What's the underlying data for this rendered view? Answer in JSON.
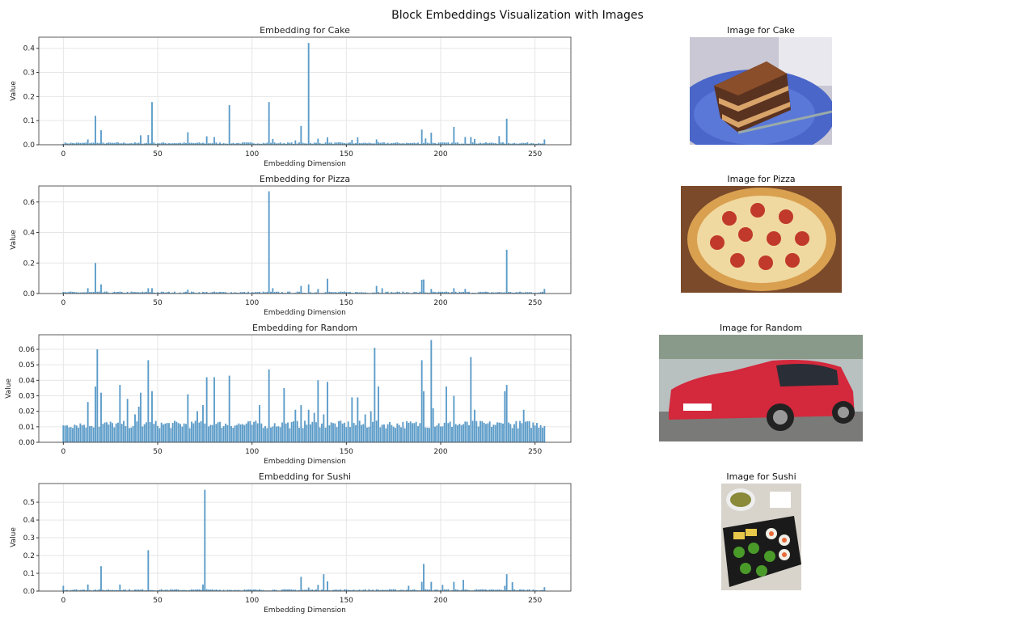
{
  "figure": {
    "title": "Block Embeddings Visualization with Images",
    "bar_color": "#5b9bc8"
  },
  "chart_data": [
    {
      "type": "bar",
      "title": "Embedding for Cake",
      "xlabel": "Embedding Dimension",
      "ylabel": "Value",
      "n": 256,
      "xlim": [
        -13,
        269
      ],
      "ylim": [
        0,
        0.446
      ],
      "xticks": [
        0,
        50,
        100,
        150,
        200,
        250
      ],
      "yticks": [
        0.0,
        0.1,
        0.2,
        0.3,
        0.4
      ],
      "ytick_labels": [
        "0.0",
        "0.1",
        "0.2",
        "0.3",
        "0.4"
      ],
      "grid": true,
      "baseline_level": 0.007,
      "baseline_noise": 0.006,
      "spikes": [
        [
          13,
          0.022
        ],
        [
          17,
          0.12
        ],
        [
          20,
          0.06
        ],
        [
          41,
          0.039
        ],
        [
          45,
          0.04
        ],
        [
          47,
          0.177
        ],
        [
          66,
          0.052
        ],
        [
          76,
          0.035
        ],
        [
          80,
          0.032
        ],
        [
          88,
          0.164
        ],
        [
          109,
          0.177
        ],
        [
          111,
          0.024
        ],
        [
          123,
          0.018
        ],
        [
          126,
          0.078
        ],
        [
          130,
          0.422
        ],
        [
          135,
          0.025
        ],
        [
          140,
          0.031
        ],
        [
          153,
          0.02
        ],
        [
          156,
          0.031
        ],
        [
          166,
          0.022
        ],
        [
          190,
          0.063
        ],
        [
          192,
          0.026
        ],
        [
          195,
          0.05
        ],
        [
          207,
          0.074
        ],
        [
          213,
          0.032
        ],
        [
          216,
          0.032
        ],
        [
          218,
          0.024
        ],
        [
          231,
          0.036
        ],
        [
          235,
          0.108
        ],
        [
          255,
          0.022
        ]
      ]
    },
    {
      "type": "bar",
      "title": "Embedding for Pizza",
      "xlabel": "Embedding Dimension",
      "ylabel": "Value",
      "n": 256,
      "xlim": [
        -13,
        269
      ],
      "ylim": [
        0,
        0.705
      ],
      "xticks": [
        0,
        50,
        100,
        150,
        200,
        250
      ],
      "yticks": [
        0.0,
        0.2,
        0.4,
        0.6
      ],
      "ytick_labels": [
        "0.0",
        "0.2",
        "0.4",
        "0.6"
      ],
      "grid": true,
      "baseline_level": 0.008,
      "baseline_noise": 0.01,
      "spikes": [
        [
          13,
          0.035
        ],
        [
          17,
          0.2
        ],
        [
          20,
          0.06
        ],
        [
          45,
          0.035
        ],
        [
          47,
          0.035
        ],
        [
          66,
          0.025
        ],
        [
          109,
          0.67
        ],
        [
          111,
          0.035
        ],
        [
          126,
          0.05
        ],
        [
          130,
          0.06
        ],
        [
          135,
          0.03
        ],
        [
          140,
          0.097
        ],
        [
          166,
          0.05
        ],
        [
          169,
          0.035
        ],
        [
          190,
          0.09
        ],
        [
          191,
          0.092
        ],
        [
          195,
          0.03
        ],
        [
          207,
          0.035
        ],
        [
          213,
          0.03
        ],
        [
          235,
          0.287
        ],
        [
          255,
          0.03
        ]
      ]
    },
    {
      "type": "bar",
      "title": "Embedding for Random",
      "xlabel": "Embedding Dimension",
      "ylabel": "Value",
      "n": 256,
      "xlim": [
        -13,
        269
      ],
      "ylim": [
        0,
        0.0694
      ],
      "xticks": [
        0,
        50,
        100,
        150,
        200,
        250
      ],
      "yticks": [
        0,
        0.01,
        0.02,
        0.03,
        0.04,
        0.05,
        0.06
      ],
      "ytick_labels": [
        "0.00",
        "0.01",
        "0.02",
        "0.03",
        "0.04",
        "0.05",
        "0.06"
      ],
      "grid": true,
      "baseline_level": 0.0115,
      "baseline_noise": 0.005,
      "spikes": [
        [
          13,
          0.026
        ],
        [
          17,
          0.036
        ],
        [
          18,
          0.06
        ],
        [
          20,
          0.032
        ],
        [
          30,
          0.037
        ],
        [
          34,
          0.028
        ],
        [
          38,
          0.018
        ],
        [
          40,
          0.023
        ],
        [
          41,
          0.032
        ],
        [
          45,
          0.053
        ],
        [
          47,
          0.033
        ],
        [
          66,
          0.031
        ],
        [
          71,
          0.02
        ],
        [
          74,
          0.024
        ],
        [
          76,
          0.042
        ],
        [
          80,
          0.042
        ],
        [
          88,
          0.043
        ],
        [
          104,
          0.024
        ],
        [
          109,
          0.047
        ],
        [
          117,
          0.035
        ],
        [
          123,
          0.021
        ],
        [
          126,
          0.024
        ],
        [
          130,
          0.021
        ],
        [
          133,
          0.019
        ],
        [
          135,
          0.04
        ],
        [
          138,
          0.018
        ],
        [
          140,
          0.039
        ],
        [
          153,
          0.029
        ],
        [
          156,
          0.029
        ],
        [
          160,
          0.018
        ],
        [
          163,
          0.02
        ],
        [
          165,
          0.061
        ],
        [
          167,
          0.036
        ],
        [
          190,
          0.053
        ],
        [
          191,
          0.033
        ],
        [
          195,
          0.066
        ],
        [
          196,
          0.022
        ],
        [
          203,
          0.036
        ],
        [
          207,
          0.03
        ],
        [
          216,
          0.055
        ],
        [
          218,
          0.021
        ],
        [
          234,
          0.033
        ],
        [
          235,
          0.037
        ],
        [
          244,
          0.021
        ]
      ]
    },
    {
      "type": "bar",
      "title": "Embedding for Sushi",
      "xlabel": "Embedding Dimension",
      "ylabel": "Value",
      "n": 256,
      "xlim": [
        -13,
        269
      ],
      "ylim": [
        0,
        0.605
      ],
      "xticks": [
        0,
        50,
        100,
        150,
        200,
        250
      ],
      "yticks": [
        0.0,
        0.1,
        0.2,
        0.3,
        0.4,
        0.5
      ],
      "ytick_labels": [
        "0.0",
        "0.1",
        "0.2",
        "0.3",
        "0.4",
        "0.5"
      ],
      "grid": true,
      "baseline_level": 0.007,
      "baseline_noise": 0.008,
      "spikes": [
        [
          0,
          0.03
        ],
        [
          13,
          0.037
        ],
        [
          20,
          0.14
        ],
        [
          30,
          0.037
        ],
        [
          45,
          0.23
        ],
        [
          74,
          0.037
        ],
        [
          75,
          0.57
        ],
        [
          126,
          0.08
        ],
        [
          130,
          0.02
        ],
        [
          135,
          0.035
        ],
        [
          138,
          0.095
        ],
        [
          140,
          0.055
        ],
        [
          183,
          0.03
        ],
        [
          190,
          0.052
        ],
        [
          191,
          0.153
        ],
        [
          195,
          0.052
        ],
        [
          201,
          0.035
        ],
        [
          207,
          0.052
        ],
        [
          212,
          0.063
        ],
        [
          234,
          0.03
        ],
        [
          235,
          0.095
        ],
        [
          238,
          0.05
        ],
        [
          255,
          0.022
        ]
      ]
    }
  ],
  "images": [
    {
      "title": "Image for Cake"
    },
    {
      "title": "Image for Pizza"
    },
    {
      "title": "Image for Random"
    },
    {
      "title": "Image for Sushi"
    }
  ]
}
